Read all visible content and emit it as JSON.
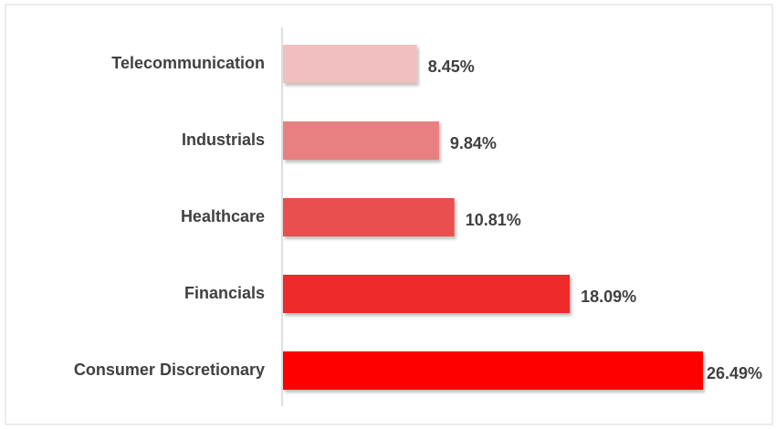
{
  "chart_data": {
    "type": "hbar",
    "categories": [
      "Telecommunication",
      "Industrials",
      "Healthcare",
      "Financials",
      "Consumer Discretionary"
    ],
    "values": [
      8.45,
      9.84,
      10.81,
      18.09,
      26.49
    ],
    "value_labels": [
      "8.45%",
      "9.84%",
      "10.81%",
      "18.09%",
      "26.49%"
    ],
    "colors": [
      "#f2bfc0",
      "#e88082",
      "#e85050",
      "#ee2a2a",
      "#ff0000"
    ]
  }
}
